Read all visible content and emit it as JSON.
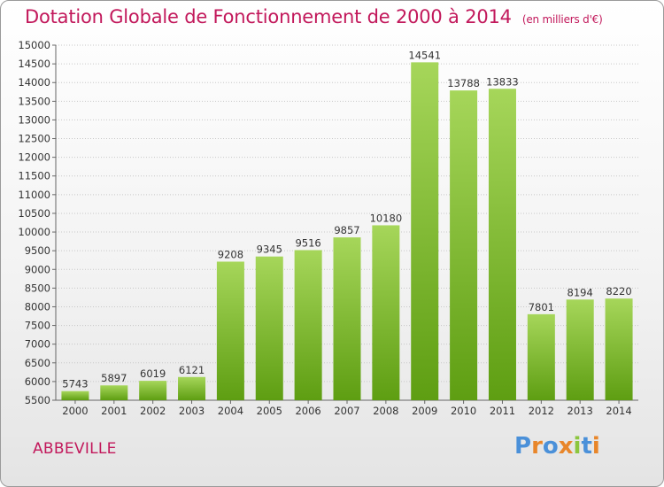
{
  "header": {
    "title": "Dotation Globale de Fonctionnement de 2000 à 2014",
    "unit": "(en milliers d'€)"
  },
  "footer": {
    "city": "ABBEVILLE",
    "logo": "Proxiti"
  },
  "colors": {
    "title": "#c2185b",
    "bar_light": "#a6d65a",
    "bar_dark": "#5e9e12",
    "logo_letters": [
      "#4a90d9",
      "#e8862a",
      "#4a90d9",
      "#e8862a",
      "#8cc63f",
      "#4a90d9",
      "#e8862a"
    ]
  },
  "chart_data": {
    "type": "bar",
    "categories": [
      "2000",
      "2001",
      "2002",
      "2003",
      "2004",
      "2005",
      "2006",
      "2007",
      "2008",
      "2009",
      "2010",
      "2011",
      "2012",
      "2013",
      "2014"
    ],
    "values": [
      5743,
      5897,
      6019,
      6121,
      9208,
      9345,
      9516,
      9857,
      10180,
      14541,
      13788,
      13833,
      7801,
      8194,
      8220
    ],
    "yticks": [
      5500,
      6000,
      6500,
      7000,
      7500,
      8000,
      8500,
      9000,
      9500,
      10000,
      10500,
      11000,
      11500,
      12000,
      12500,
      13000,
      13500,
      14000,
      14500,
      15000
    ],
    "ylim": [
      5500,
      15000
    ],
    "grid": true
  }
}
